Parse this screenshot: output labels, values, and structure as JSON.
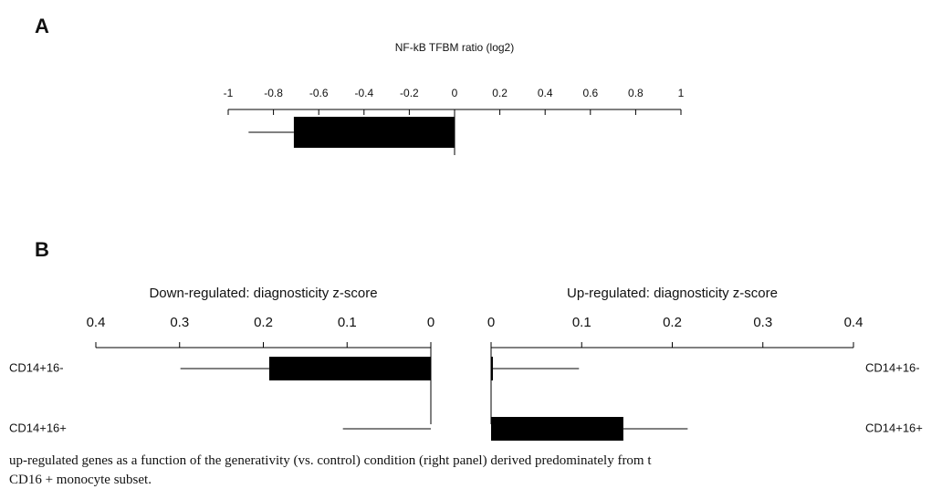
{
  "panel_labels": [
    "A",
    "B"
  ],
  "caption": [
    "up-regulated genes as a function of the generativity (vs. control) condition (right panel) derived predominately from t",
    "CD16 + monocyte subset."
  ],
  "chart_data": [
    {
      "type": "hbar",
      "title": "NF-kB TFBM ratio (log2)",
      "categories": [
        null
      ],
      "values": [
        -0.71
      ],
      "errors": [
        0.2
      ],
      "color": "#000000",
      "xlim": [
        -1,
        1
      ],
      "xticks": [
        -1,
        -0.8,
        -0.6,
        -0.4,
        -0.2,
        0,
        0.2,
        0.4,
        0.6,
        0.8,
        1
      ]
    },
    {
      "type": "hbar",
      "title": "Down-regulated: diagnosticity z-score",
      "categories": [
        "CD14+16-",
        "CD14+16+"
      ],
      "values": [
        0.193,
        0
      ],
      "errors": [
        0.106,
        0.105
      ],
      "color": "#000000",
      "xlim": [
        0.4,
        0
      ],
      "xticks": [
        0.4,
        0.3,
        0.2,
        0.1,
        0
      ],
      "label_side": "left"
    },
    {
      "type": "hbar",
      "title": "Up-regulated: diagnosticity z-score",
      "categories": [
        "CD14+16-",
        "CD14+16+"
      ],
      "values": [
        0.002,
        0.146
      ],
      "errors": [
        0.095,
        0.071
      ],
      "color": "#000000",
      "xlim": [
        0,
        0.4
      ],
      "xticks": [
        0,
        0.1,
        0.2,
        0.3,
        0.4
      ],
      "label_side": "right"
    }
  ]
}
